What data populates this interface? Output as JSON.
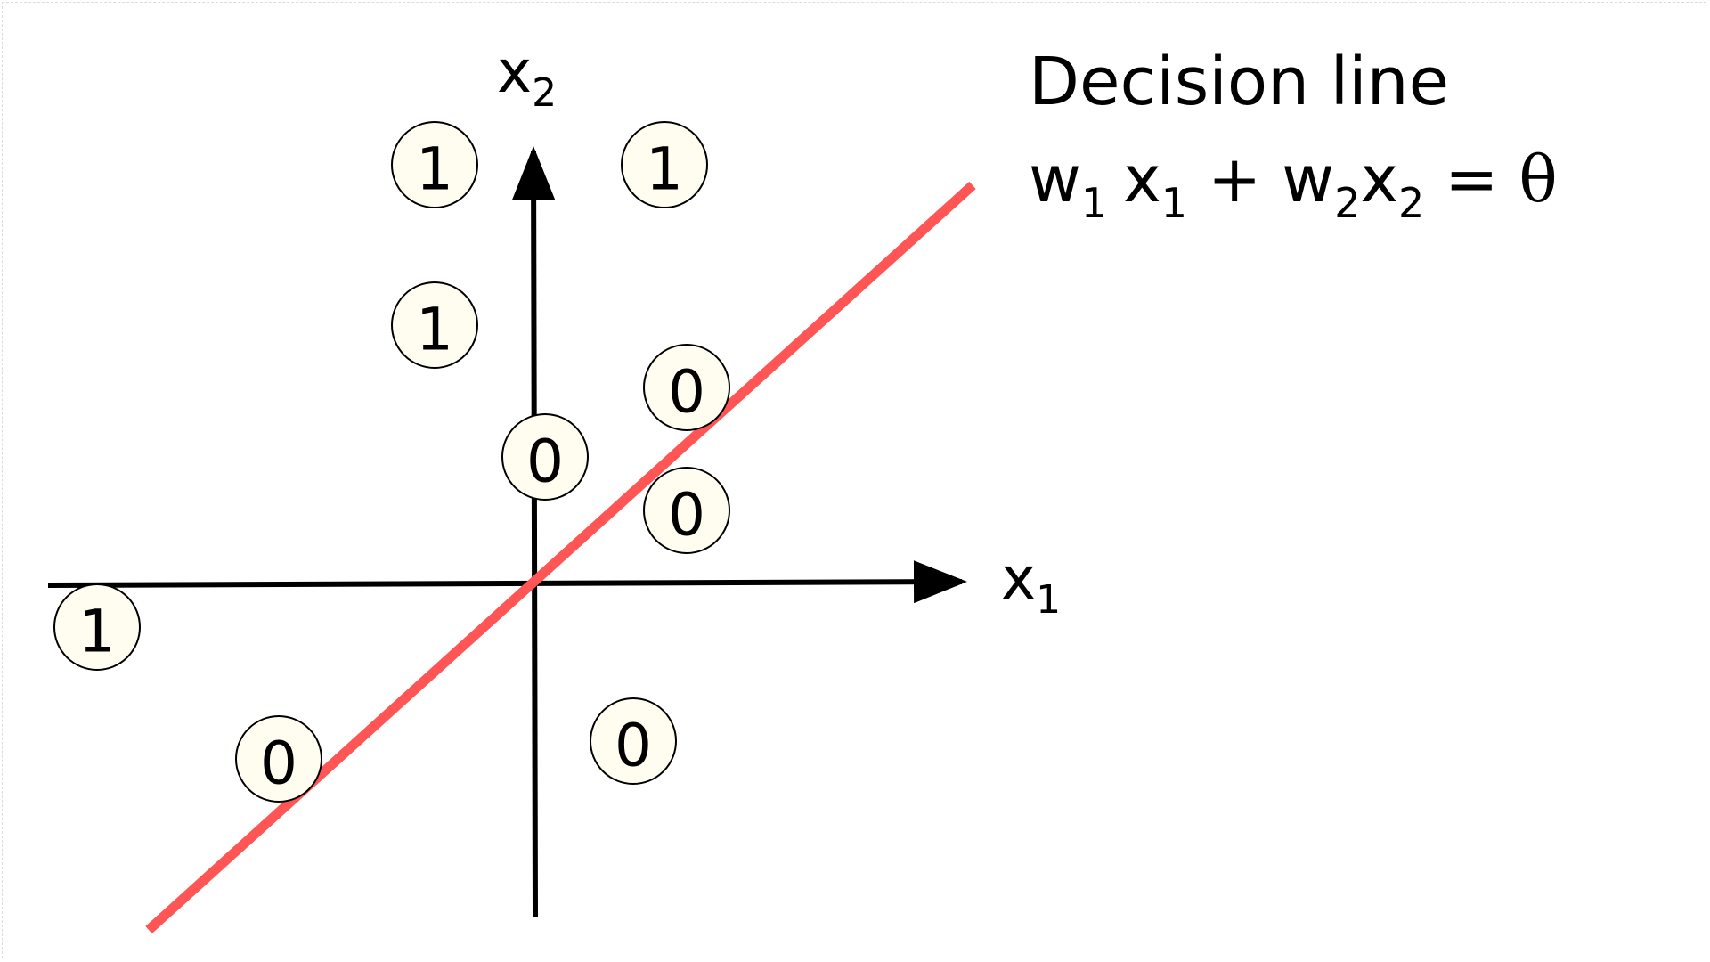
{
  "diagram": {
    "title": "Decision line",
    "equation": {
      "w1": "w",
      "w1_sub": "1",
      "x1": "x",
      "x1_sub": "1",
      "plus": "+",
      "w2": "w",
      "w2_sub": "2",
      "x2": "x",
      "x2_sub": "2",
      "equals": "=",
      "theta": "θ"
    },
    "axes": {
      "x_label": "x",
      "x_sub": "1",
      "y_label": "x",
      "y_sub": "2"
    },
    "decision_line_color": "#ff5555",
    "points": [
      {
        "label": "1"
      },
      {
        "label": "1"
      },
      {
        "label": "1"
      },
      {
        "label": "0"
      },
      {
        "label": "0"
      },
      {
        "label": "0"
      },
      {
        "label": "1"
      },
      {
        "label": "0"
      },
      {
        "label": "0"
      }
    ]
  }
}
